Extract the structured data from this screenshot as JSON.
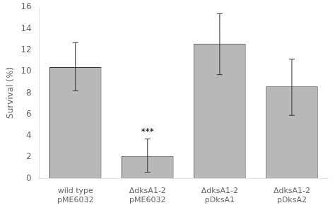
{
  "chart_data": {
    "type": "bar",
    "categories": [
      "wild type\npME6032",
      "ΔdksA1-2\npME6032",
      "ΔdksA1-2\npDksA1",
      "ΔdksA1-2\npDksA2"
    ],
    "values": [
      10.4,
      2.1,
      12.6,
      8.6
    ],
    "errors_lower": [
      2.2,
      1.5,
      2.9,
      2.7
    ],
    "errors_upper": [
      2.3,
      1.6,
      2.8,
      2.55
    ],
    "color": "#b8b8b8",
    "ylabel": "Survival (%)",
    "ylim": [
      0,
      16
    ],
    "yticks": [
      0,
      2,
      4,
      6,
      8,
      10,
      12,
      14,
      16
    ],
    "annotations": [
      {
        "text": "***",
        "category": "ΔdksA1-2\npME6032"
      }
    ],
    "grid": false
  }
}
